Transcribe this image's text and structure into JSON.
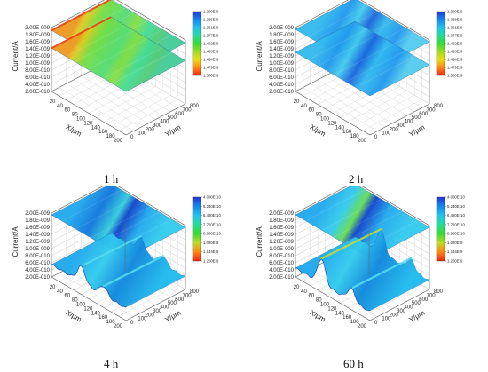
{
  "figure": {
    "panels": [
      {
        "label": "1 h",
        "colorbar": [
          "1.300E-9",
          "1.325E-9",
          "1.351E-9",
          "1.377E-9",
          "1.402E-9",
          "1.428E-9",
          "1.454E-9",
          "1.479E-9",
          "1.500E-9"
        ],
        "colors": [
          "#2233dd",
          "#1188ee",
          "#22c4ee",
          "#22dd99",
          "#33dd33",
          "#99dd22",
          "#eedd11",
          "#ff8811",
          "#ff2211"
        ]
      },
      {
        "label": "2 h",
        "colorbar": [
          "1.300E-9",
          "1.328E-9",
          "1.351E-9",
          "1.377E-9",
          "1.402E-9",
          "1.428E-9",
          "1.454E-9",
          "1.479E-9",
          "1.500E-9"
        ],
        "colors": [
          "#2233dd",
          "#1188ee",
          "#22c4ee",
          "#22dd99",
          "#33dd33",
          "#99dd22",
          "#eedd11",
          "#ff8811",
          "#ff2211"
        ]
      },
      {
        "label": "4 h",
        "colorbar": [
          "4.000E-10",
          "5.240E-10",
          "6.480E-10",
          "7.720E-10",
          "8.960E-10",
          "1.020E-9",
          "1.144E-9",
          "1.200E-9"
        ],
        "colors": [
          "#2233dd",
          "#1188ee",
          "#22c4ee",
          "#22dd99",
          "#33dd33",
          "#bbdd22",
          "#ff8811",
          "#ff2211"
        ]
      },
      {
        "label": "60 h",
        "colorbar": [
          "4.000E-10",
          "5.240E-10",
          "6.480E-10",
          "7.720E-10",
          "8.960E-10",
          "1.020E-9",
          "1.144E-9",
          "1.200E-9"
        ],
        "colors": [
          "#2233dd",
          "#1188ee",
          "#22c4ee",
          "#22dd99",
          "#33dd33",
          "#bbdd22",
          "#ff8811",
          "#ff2211"
        ]
      }
    ]
  },
  "chart_data": [
    {
      "type": "surface",
      "title": "1 h",
      "xlabel": "X/μm",
      "ylabel": "Y/μm",
      "zlabel": "Current/A",
      "x_ticks": [
        "0",
        "20",
        "40",
        "60",
        "80",
        "100",
        "120",
        "140",
        "160",
        "180",
        "200"
      ],
      "y_ticks": [
        "0",
        "100",
        "200",
        "300",
        "400",
        "500",
        "600",
        "700",
        "800"
      ],
      "z_ticks": [
        "2.00E-010",
        "4.00E-010",
        "6.00E-010",
        "8.00E-010",
        "1.00E-009",
        "1.20E-009",
        "1.40E-009",
        "1.60E-009",
        "1.80E-009",
        "2.00E-009"
      ],
      "xlim": [
        0,
        200
      ],
      "ylim": [
        0,
        800
      ],
      "zlim": [
        2e-10,
        2e-09
      ],
      "surface_levels": [
        1.42e-09,
        1.92e-09
      ],
      "surface_style": "green-yellow with red front edge"
    },
    {
      "type": "surface",
      "title": "2 h",
      "xlabel": "X/μm",
      "ylabel": "Y/μm",
      "zlabel": "Current/A",
      "x_ticks": [
        "0",
        "20",
        "40",
        "60",
        "80",
        "100",
        "120",
        "140",
        "160",
        "180",
        "200"
      ],
      "y_ticks": [
        "0",
        "100",
        "200",
        "300",
        "400",
        "500",
        "600",
        "700",
        "800"
      ],
      "z_ticks": [
        "2.00E-010",
        "4.00E-010",
        "6.00E-010",
        "8.00E-010",
        "1.00E-009",
        "1.20E-009",
        "1.40E-009",
        "1.60E-009",
        "1.80E-009",
        "2.00E-009"
      ],
      "xlim": [
        0,
        200
      ],
      "ylim": [
        0,
        800
      ],
      "zlim": [
        2e-10,
        2e-09
      ],
      "surface_levels": [
        1.3e-09,
        1.95e-09
      ],
      "surface_style": "blue-cyan"
    },
    {
      "type": "surface",
      "title": "4 h",
      "xlabel": "X/μm",
      "ylabel": "Y/μm",
      "zlabel": "Current/A",
      "x_ticks": [
        "0",
        "20",
        "40",
        "60",
        "80",
        "100",
        "120",
        "140",
        "160",
        "180",
        "200"
      ],
      "y_ticks": [
        "0",
        "100",
        "200",
        "300",
        "400",
        "500",
        "600",
        "700",
        "800"
      ],
      "z_ticks": [
        "2.00E-010",
        "4.00E-010",
        "6.00E-010",
        "8.00E-010",
        "1.00E-009",
        "1.20E-009",
        "1.40E-009",
        "1.60E-009",
        "1.80E-009",
        "2.00E-009"
      ],
      "xlim": [
        0,
        200
      ],
      "ylim": [
        0,
        800
      ],
      "zlim": [
        2e-10,
        2e-09
      ],
      "surface_levels": [
        5.5e-10,
        1.95e-09
      ],
      "peaks": [
        {
          "x": 80,
          "z": 1e-09
        },
        {
          "x": 140,
          "z": 8e-10
        }
      ]
    },
    {
      "type": "surface",
      "title": "60 h",
      "xlabel": "X/μm",
      "ylabel": "Y/μm",
      "zlabel": "Current/A",
      "x_ticks": [
        "0",
        "20",
        "40",
        "60",
        "80",
        "100",
        "120",
        "140",
        "160",
        "180",
        "200"
      ],
      "y_ticks": [
        "0",
        "100",
        "200",
        "300",
        "400",
        "500",
        "600",
        "700",
        "800"
      ],
      "z_ticks": [
        "2.00E-010",
        "4.00E-010",
        "6.00E-010",
        "8.00E-010",
        "1.00E-009",
        "1.20E-009",
        "1.40E-009",
        "1.60E-009",
        "1.80E-009",
        "2.00E-009"
      ],
      "xlim": [
        0,
        200
      ],
      "ylim": [
        0,
        800
      ],
      "zlim": [
        2e-10,
        2e-09
      ],
      "surface_levels": [
        4.5e-10,
        1.95e-09
      ],
      "peaks": [
        {
          "x": 70,
          "z": 1.15e-09
        },
        {
          "x": 150,
          "z": 8e-10
        }
      ]
    }
  ]
}
